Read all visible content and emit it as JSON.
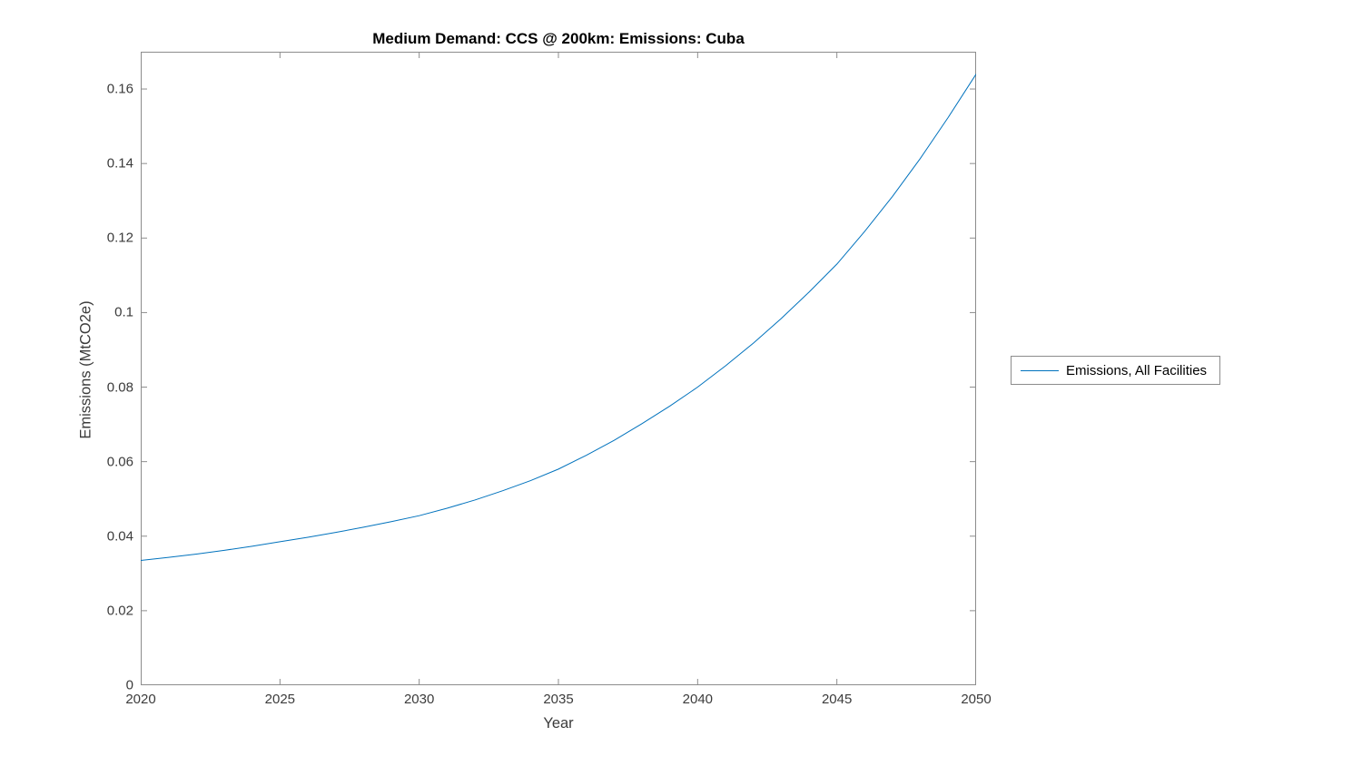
{
  "title": "Medium Demand: CCS @ 200km: Emissions: Cuba",
  "colors": {
    "line": "#0072BD",
    "axis_box": "#8c8c8c",
    "tick": "#3b3b3b",
    "title_text": "#000000"
  },
  "legend": {
    "entries": [
      {
        "label": "Emissions, All Facilities",
        "color": "#0072BD"
      }
    ]
  },
  "chart_data": {
    "type": "line",
    "title": "Medium Demand: CCS @ 200km: Emissions: Cuba",
    "xlabel": "Year",
    "ylabel": "Emissions (MtCO2e)",
    "xlim": [
      2020,
      2050
    ],
    "ylim": [
      0,
      0.17
    ],
    "grid": false,
    "legend_position": "right-outside",
    "xtick_values": [
      2020,
      2025,
      2030,
      2035,
      2040,
      2045,
      2050
    ],
    "xtick_labels": [
      "2020",
      "2025",
      "2030",
      "2035",
      "2040",
      "2045",
      "2050"
    ],
    "ytick_values": [
      0,
      0.02,
      0.04,
      0.06,
      0.08,
      0.1,
      0.12,
      0.14,
      0.16
    ],
    "ytick_labels": [
      "0",
      "0.02",
      "0.04",
      "0.06",
      "0.08",
      "0.1",
      "0.12",
      "0.14",
      "0.16"
    ],
    "series": [
      {
        "name": "Emissions, All Facilities",
        "color": "#0072BD",
        "x": [
          2020,
          2021,
          2022,
          2023,
          2024,
          2025,
          2026,
          2027,
          2028,
          2029,
          2030,
          2031,
          2032,
          2033,
          2034,
          2035,
          2036,
          2037,
          2038,
          2039,
          2040,
          2041,
          2042,
          2043,
          2044,
          2045,
          2046,
          2047,
          2048,
          2049,
          2050
        ],
        "y": [
          0.0335,
          0.0343,
          0.0352,
          0.0362,
          0.0373,
          0.0385,
          0.0397,
          0.041,
          0.0424,
          0.0439,
          0.0455,
          0.0475,
          0.0497,
          0.0522,
          0.0549,
          0.058,
          0.0617,
          0.0657,
          0.0702,
          0.0749,
          0.08,
          0.0857,
          0.0918,
          0.0984,
          0.1055,
          0.113,
          0.1218,
          0.1312,
          0.1414,
          0.1524,
          0.164
        ]
      }
    ]
  }
}
